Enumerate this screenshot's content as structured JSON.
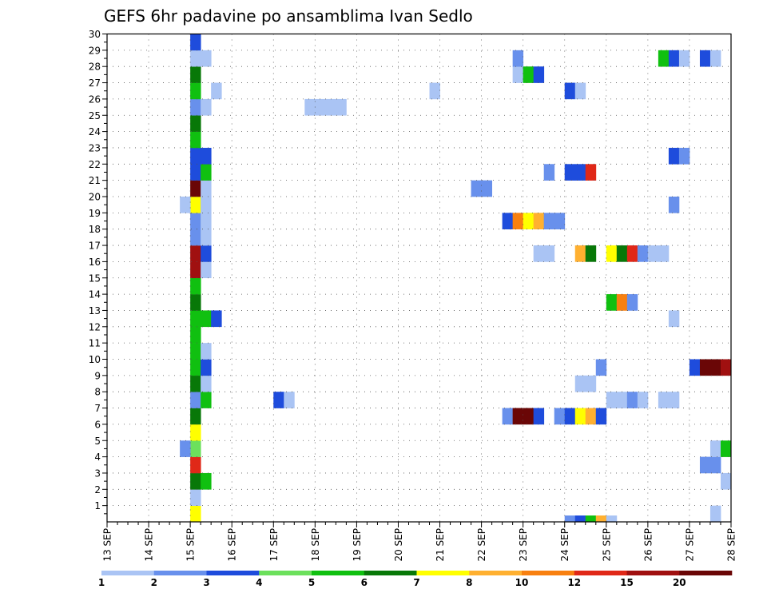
{
  "chart_data": {
    "type": "heatmap",
    "title": "GEFS 6hr padavine po ansamblima Ivan Sedlo",
    "x_ticks": [
      "13 SEP",
      "14 SEP",
      "15 SEP",
      "16 SEP",
      "17 SEP",
      "18 SEP",
      "19 SEP",
      "20 SEP",
      "21 SEP",
      "22 SEP",
      "23 SEP",
      "24 SEP",
      "25 SEP",
      "26 SEP",
      "27 SEP",
      "28 SEP"
    ],
    "y_ticks": [
      1,
      2,
      3,
      4,
      5,
      6,
      7,
      8,
      9,
      10,
      11,
      12,
      13,
      14,
      15,
      16,
      17,
      18,
      19,
      20,
      21,
      22,
      23,
      24,
      25,
      26,
      27,
      28,
      29,
      30
    ],
    "x_range": [
      "13 SEP 00Z",
      "28 SEP 00Z"
    ],
    "y_range": [
      0,
      30
    ],
    "time_step_hours": 6,
    "grid": true,
    "legend_position": "bottom",
    "color_scale": {
      "labels": [
        "1",
        "2",
        "3",
        "4",
        "5",
        "6",
        "7",
        "8",
        "10",
        "12",
        "15",
        "20"
      ],
      "colors": [
        "#aac4f4",
        "#6890ec",
        "#1e4cdc",
        "#6ce05c",
        "#10c010",
        "#087808",
        "#ffff00",
        "#ffb030",
        "#f88010",
        "#e02818",
        "#a01010",
        "#6a0606"
      ]
    },
    "cells": [
      [
        "15 SEP 00Z",
        0,
        7
      ],
      [
        "15 SEP 00Z",
        1,
        1
      ],
      [
        "15 SEP 00Z",
        2,
        6
      ],
      [
        "15 SEP 00Z",
        3,
        12
      ],
      [
        "15 SEP 00Z",
        4,
        4
      ],
      [
        "15 SEP 00Z",
        5,
        7
      ],
      [
        "15 SEP 00Z",
        6,
        6
      ],
      [
        "15 SEP 00Z",
        7,
        2
      ],
      [
        "15 SEP 00Z",
        8,
        6
      ],
      [
        "15 SEP 00Z",
        9,
        5
      ],
      [
        "15 SEP 00Z",
        10,
        5
      ],
      [
        "15 SEP 00Z",
        11,
        5
      ],
      [
        "15 SEP 00Z",
        12,
        5
      ],
      [
        "15 SEP 00Z",
        13,
        6
      ],
      [
        "15 SEP 00Z",
        14,
        5
      ],
      [
        "15 SEP 00Z",
        15,
        15
      ],
      [
        "15 SEP 00Z",
        16,
        15
      ],
      [
        "15 SEP 00Z",
        17,
        2
      ],
      [
        "15 SEP 00Z",
        18,
        2
      ],
      [
        "15 SEP 00Z",
        19,
        7
      ],
      [
        "15 SEP 00Z",
        20,
        20
      ],
      [
        "15 SEP 00Z",
        21,
        3
      ],
      [
        "15 SEP 00Z",
        22,
        3
      ],
      [
        "15 SEP 00Z",
        23,
        5
      ],
      [
        "15 SEP 00Z",
        24,
        6
      ],
      [
        "15 SEP 00Z",
        25,
        2
      ],
      [
        "15 SEP 00Z",
        26,
        5
      ],
      [
        "15 SEP 00Z",
        27,
        6
      ],
      [
        "15 SEP 00Z",
        28,
        1
      ],
      [
        "15 SEP 00Z",
        29,
        3
      ],
      [
        "14 SEP 18Z",
        4,
        2
      ],
      [
        "14 SEP 18Z",
        19,
        1
      ],
      [
        "15 SEP 06Z",
        2,
        5
      ],
      [
        "15 SEP 06Z",
        7,
        5
      ],
      [
        "15 SEP 06Z",
        8,
        1
      ],
      [
        "15 SEP 06Z",
        9,
        3
      ],
      [
        "15 SEP 06Z",
        10,
        1
      ],
      [
        "15 SEP 06Z",
        12,
        5
      ],
      [
        "15 SEP 06Z",
        15,
        1
      ],
      [
        "15 SEP 06Z",
        16,
        3
      ],
      [
        "15 SEP 06Z",
        17,
        1
      ],
      [
        "15 SEP 06Z",
        18,
        1
      ],
      [
        "15 SEP 06Z",
        19,
        1
      ],
      [
        "15 SEP 06Z",
        20,
        1
      ],
      [
        "15 SEP 06Z",
        21,
        5
      ],
      [
        "15 SEP 06Z",
        22,
        3
      ],
      [
        "15 SEP 06Z",
        25,
        1
      ],
      [
        "15 SEP 06Z",
        28,
        1
      ],
      [
        "15 SEP 12Z",
        12,
        3
      ],
      [
        "15 SEP 12Z",
        26,
        1
      ],
      [
        "17 SEP 18Z",
        25,
        1
      ],
      [
        "18 SEP 00Z",
        25,
        1
      ],
      [
        "18 SEP 06Z",
        25,
        1
      ],
      [
        "18 SEP 12Z",
        25,
        1
      ],
      [
        "17 SEP 00Z",
        7,
        3
      ],
      [
        "17 SEP 06Z",
        7,
        1
      ],
      [
        "20 SEP 18Z",
        26,
        1
      ],
      [
        "21 SEP 18Z",
        20,
        2
      ],
      [
        "22 SEP 00Z",
        20,
        2
      ],
      [
        "22 SEP 12Z",
        6,
        2
      ],
      [
        "22 SEP 18Z",
        6,
        20
      ],
      [
        "23 SEP 00Z",
        6,
        20
      ],
      [
        "23 SEP 06Z",
        6,
        3
      ],
      [
        "22 SEP 12Z",
        18,
        3
      ],
      [
        "22 SEP 18Z",
        18,
        10
      ],
      [
        "23 SEP 00Z",
        18,
        7
      ],
      [
        "23 SEP 06Z",
        18,
        8
      ],
      [
        "23 SEP 12Z",
        18,
        2
      ],
      [
        "23 SEP 18Z",
        18,
        2
      ],
      [
        "22 SEP 18Z",
        27,
        1
      ],
      [
        "23 SEP 00Z",
        27,
        5
      ],
      [
        "23 SEP 06Z",
        27,
        3
      ],
      [
        "22 SEP 18Z",
        28,
        2
      ],
      [
        "23 SEP 06Z",
        16,
        1
      ],
      [
        "23 SEP 12Z",
        16,
        1
      ],
      [
        "23 SEP 12Z",
        21,
        2
      ],
      [
        "23 SEP 18Z",
        6,
        2
      ],
      [
        "24 SEP 00Z",
        6,
        3
      ],
      [
        "24 SEP 06Z",
        6,
        7
      ],
      [
        "24 SEP 12Z",
        6,
        8
      ],
      [
        "24 SEP 18Z",
        6,
        3
      ],
      [
        "24 SEP 00Z",
        21,
        3
      ],
      [
        "24 SEP 06Z",
        21,
        3
      ],
      [
        "24 SEP 12Z",
        21,
        12
      ],
      [
        "24 SEP 00Z",
        26,
        3
      ],
      [
        "24 SEP 00Z",
        -1,
        2
      ],
      [
        "24 SEP 06Z",
        -1,
        3
      ],
      [
        "24 SEP 12Z",
        -1,
        5
      ],
      [
        "24 SEP 18Z",
        -1,
        8
      ],
      [
        "25 SEP 00Z",
        -1,
        1
      ],
      [
        "24 SEP 06Z",
        8,
        1
      ],
      [
        "24 SEP 12Z",
        8,
        1
      ],
      [
        "24 SEP 06Z",
        16,
        8
      ],
      [
        "24 SEP 12Z",
        16,
        6
      ],
      [
        "24 SEP 06Z",
        26,
        1
      ],
      [
        "24 SEP 18Z",
        9,
        2
      ],
      [
        "25 SEP 00Z",
        7,
        1
      ],
      [
        "25 SEP 06Z",
        7,
        1
      ],
      [
        "25 SEP 12Z",
        7,
        2
      ],
      [
        "25 SEP 18Z",
        7,
        1
      ],
      [
        "25 SEP 00Z",
        13,
        5
      ],
      [
        "25 SEP 06Z",
        13,
        10
      ],
      [
        "25 SEP 12Z",
        13,
        2
      ],
      [
        "25 SEP 00Z",
        16,
        7
      ],
      [
        "25 SEP 06Z",
        16,
        6
      ],
      [
        "25 SEP 12Z",
        16,
        12
      ],
      [
        "25 SEP 18Z",
        16,
        2
      ],
      [
        "26 SEP 00Z",
        16,
        1
      ],
      [
        "26 SEP 06Z",
        16,
        1
      ],
      [
        "26 SEP 06Z",
        7,
        1
      ],
      [
        "26 SEP 12Z",
        7,
        1
      ],
      [
        "26 SEP 12Z",
        12,
        1
      ],
      [
        "26 SEP 12Z",
        19,
        2
      ],
      [
        "26 SEP 12Z",
        22,
        3
      ],
      [
        "26 SEP 18Z",
        22,
        2
      ],
      [
        "26 SEP 06Z",
        28,
        5
      ],
      [
        "26 SEP 12Z",
        28,
        3
      ],
      [
        "26 SEP 18Z",
        28,
        1
      ],
      [
        "27 SEP 00Z",
        9,
        3
      ],
      [
        "27 SEP 06Z",
        9,
        20
      ],
      [
        "27 SEP 12Z",
        9,
        20
      ],
      [
        "27 SEP 18Z",
        9,
        15
      ],
      [
        "27 SEP 06Z",
        3,
        2
      ],
      [
        "27 SEP 12Z",
        3,
        2
      ],
      [
        "27 SEP 06Z",
        28,
        3
      ],
      [
        "27 SEP 12Z",
        28,
        1
      ],
      [
        "27 SEP 12Z",
        0,
        1
      ],
      [
        "27 SEP 12Z",
        4,
        1
      ],
      [
        "27 SEP 18Z",
        4,
        5
      ],
      [
        "27 SEP 18Z",
        2,
        1
      ]
    ]
  }
}
